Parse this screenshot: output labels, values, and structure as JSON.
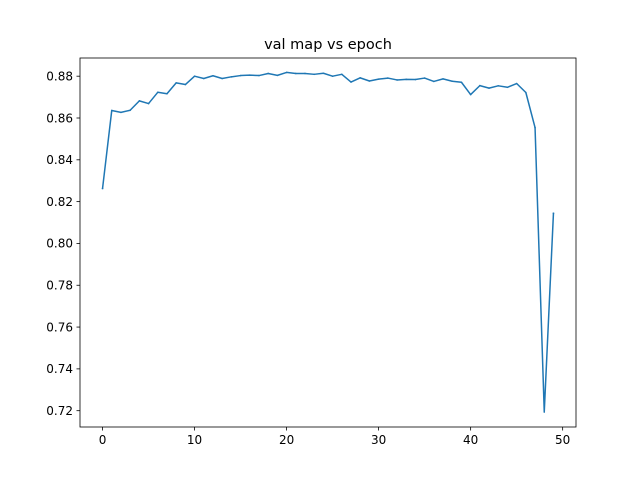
{
  "chart_data": {
    "type": "line",
    "title": "val map vs epoch",
    "xlabel": "",
    "ylabel": "",
    "xlim": [
      -2.45,
      51.45
    ],
    "ylim": [
      0.7122,
      0.8887
    ],
    "x_ticks": [
      0,
      10,
      20,
      30,
      40,
      50
    ],
    "y_ticks": [
      0.72,
      0.74,
      0.76,
      0.78,
      0.8,
      0.82,
      0.84,
      0.86,
      0.88
    ],
    "grid": false,
    "legend": "none",
    "series": [
      {
        "color": "#1f77b4",
        "x": [
          0,
          1,
          2,
          3,
          4,
          5,
          6,
          7,
          8,
          9,
          10,
          11,
          12,
          13,
          14,
          15,
          16,
          17,
          18,
          19,
          20,
          21,
          22,
          23,
          24,
          25,
          26,
          27,
          28,
          29,
          30,
          31,
          32,
          33,
          34,
          35,
          36,
          37,
          38,
          39,
          40,
          41,
          42,
          43,
          44,
          45,
          46,
          47,
          48,
          49
        ],
        "values": [
          0.8263,
          0.8636,
          0.8627,
          0.8637,
          0.8682,
          0.8669,
          0.8723,
          0.8716,
          0.8768,
          0.876,
          0.88,
          0.8789,
          0.8802,
          0.8789,
          0.8797,
          0.8803,
          0.8805,
          0.8803,
          0.8813,
          0.8804,
          0.8818,
          0.8813,
          0.8813,
          0.8809,
          0.8814,
          0.88,
          0.8809,
          0.8772,
          0.8792,
          0.8777,
          0.8786,
          0.8791,
          0.8782,
          0.8785,
          0.8784,
          0.8791,
          0.8775,
          0.8787,
          0.8776,
          0.8771,
          0.8712,
          0.8755,
          0.8743,
          0.8754,
          0.8747,
          0.8765,
          0.8722,
          0.8554,
          0.7194,
          0.8144
        ]
      }
    ]
  }
}
